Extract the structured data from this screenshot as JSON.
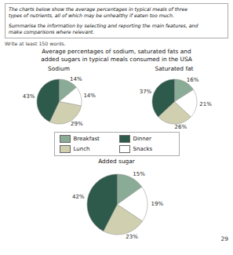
{
  "title": "Average percentages of sodium, saturated fats and\nadded sugars in typical meals consumed in the USA",
  "annotations": [
    "The charts below show the average percentages in typical meals of three",
    "types of nutrients, all of which may be unhealthy if eaten too much.",
    "Summarise the information by selecting and reporting the main features, and",
    "make comparisons where relevant.",
    "Write at least 150 words.",
    "29"
  ],
  "chart_data": [
    {
      "type": "pie",
      "title": "Sodium",
      "categories": [
        "Breakfast",
        "Snacks",
        "Lunch",
        "Dinner"
      ],
      "values": [
        14,
        14,
        29,
        43
      ],
      "value_labels": [
        "14%",
        "14%",
        "29%",
        "43%"
      ],
      "colors": [
        "#8aab96",
        "#ffffff",
        "#d0cfb0",
        "#2d5a4a"
      ],
      "data_labels": true,
      "legend": "bottom"
    },
    {
      "type": "pie",
      "title": "Saturated fat",
      "categories": [
        "Breakfast",
        "Snacks",
        "Lunch",
        "Dinner"
      ],
      "values": [
        16,
        21,
        26,
        37
      ],
      "value_labels": [
        "16%",
        "21%",
        "26%",
        "37%"
      ],
      "colors": [
        "#8aab96",
        "#ffffff",
        "#d0cfb0",
        "#2d5a4a"
      ],
      "data_labels": true
    },
    {
      "type": "pie",
      "title": "Added sugar",
      "categories": [
        "Breakfast",
        "Snacks",
        "Lunch",
        "Dinner"
      ],
      "values": [
        15,
        19,
        23,
        42
      ],
      "value_labels": [
        "15%",
        "19%",
        "23%",
        "42%"
      ],
      "colors": [
        "#8aab96",
        "#ffffff",
        "#d0cfb0",
        "#2d5a4a"
      ],
      "data_labels": true
    }
  ]
}
